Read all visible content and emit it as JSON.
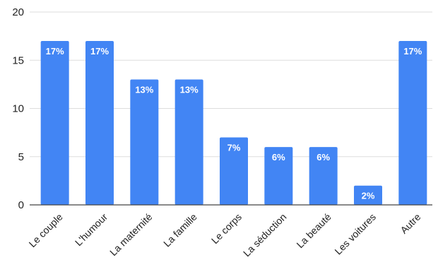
{
  "chart_data": {
    "type": "bar",
    "categories": [
      "Le couple",
      "L'humour",
      "La maternité",
      "La famille",
      "Le corps",
      "La séduction",
      "La beauté",
      "Les voitures",
      "Autre"
    ],
    "values": [
      17,
      17,
      13,
      13,
      7,
      6,
      6,
      2,
      17
    ],
    "data_labels": [
      "17%",
      "17%",
      "13%",
      "13%",
      "7%",
      "6%",
      "6%",
      "2%",
      "17%"
    ],
    "y_ticks": [
      0,
      5,
      10,
      15,
      20
    ],
    "ylim": [
      0,
      20
    ],
    "grid": true,
    "legend": "none",
    "bar_color": "#4285f4"
  }
}
